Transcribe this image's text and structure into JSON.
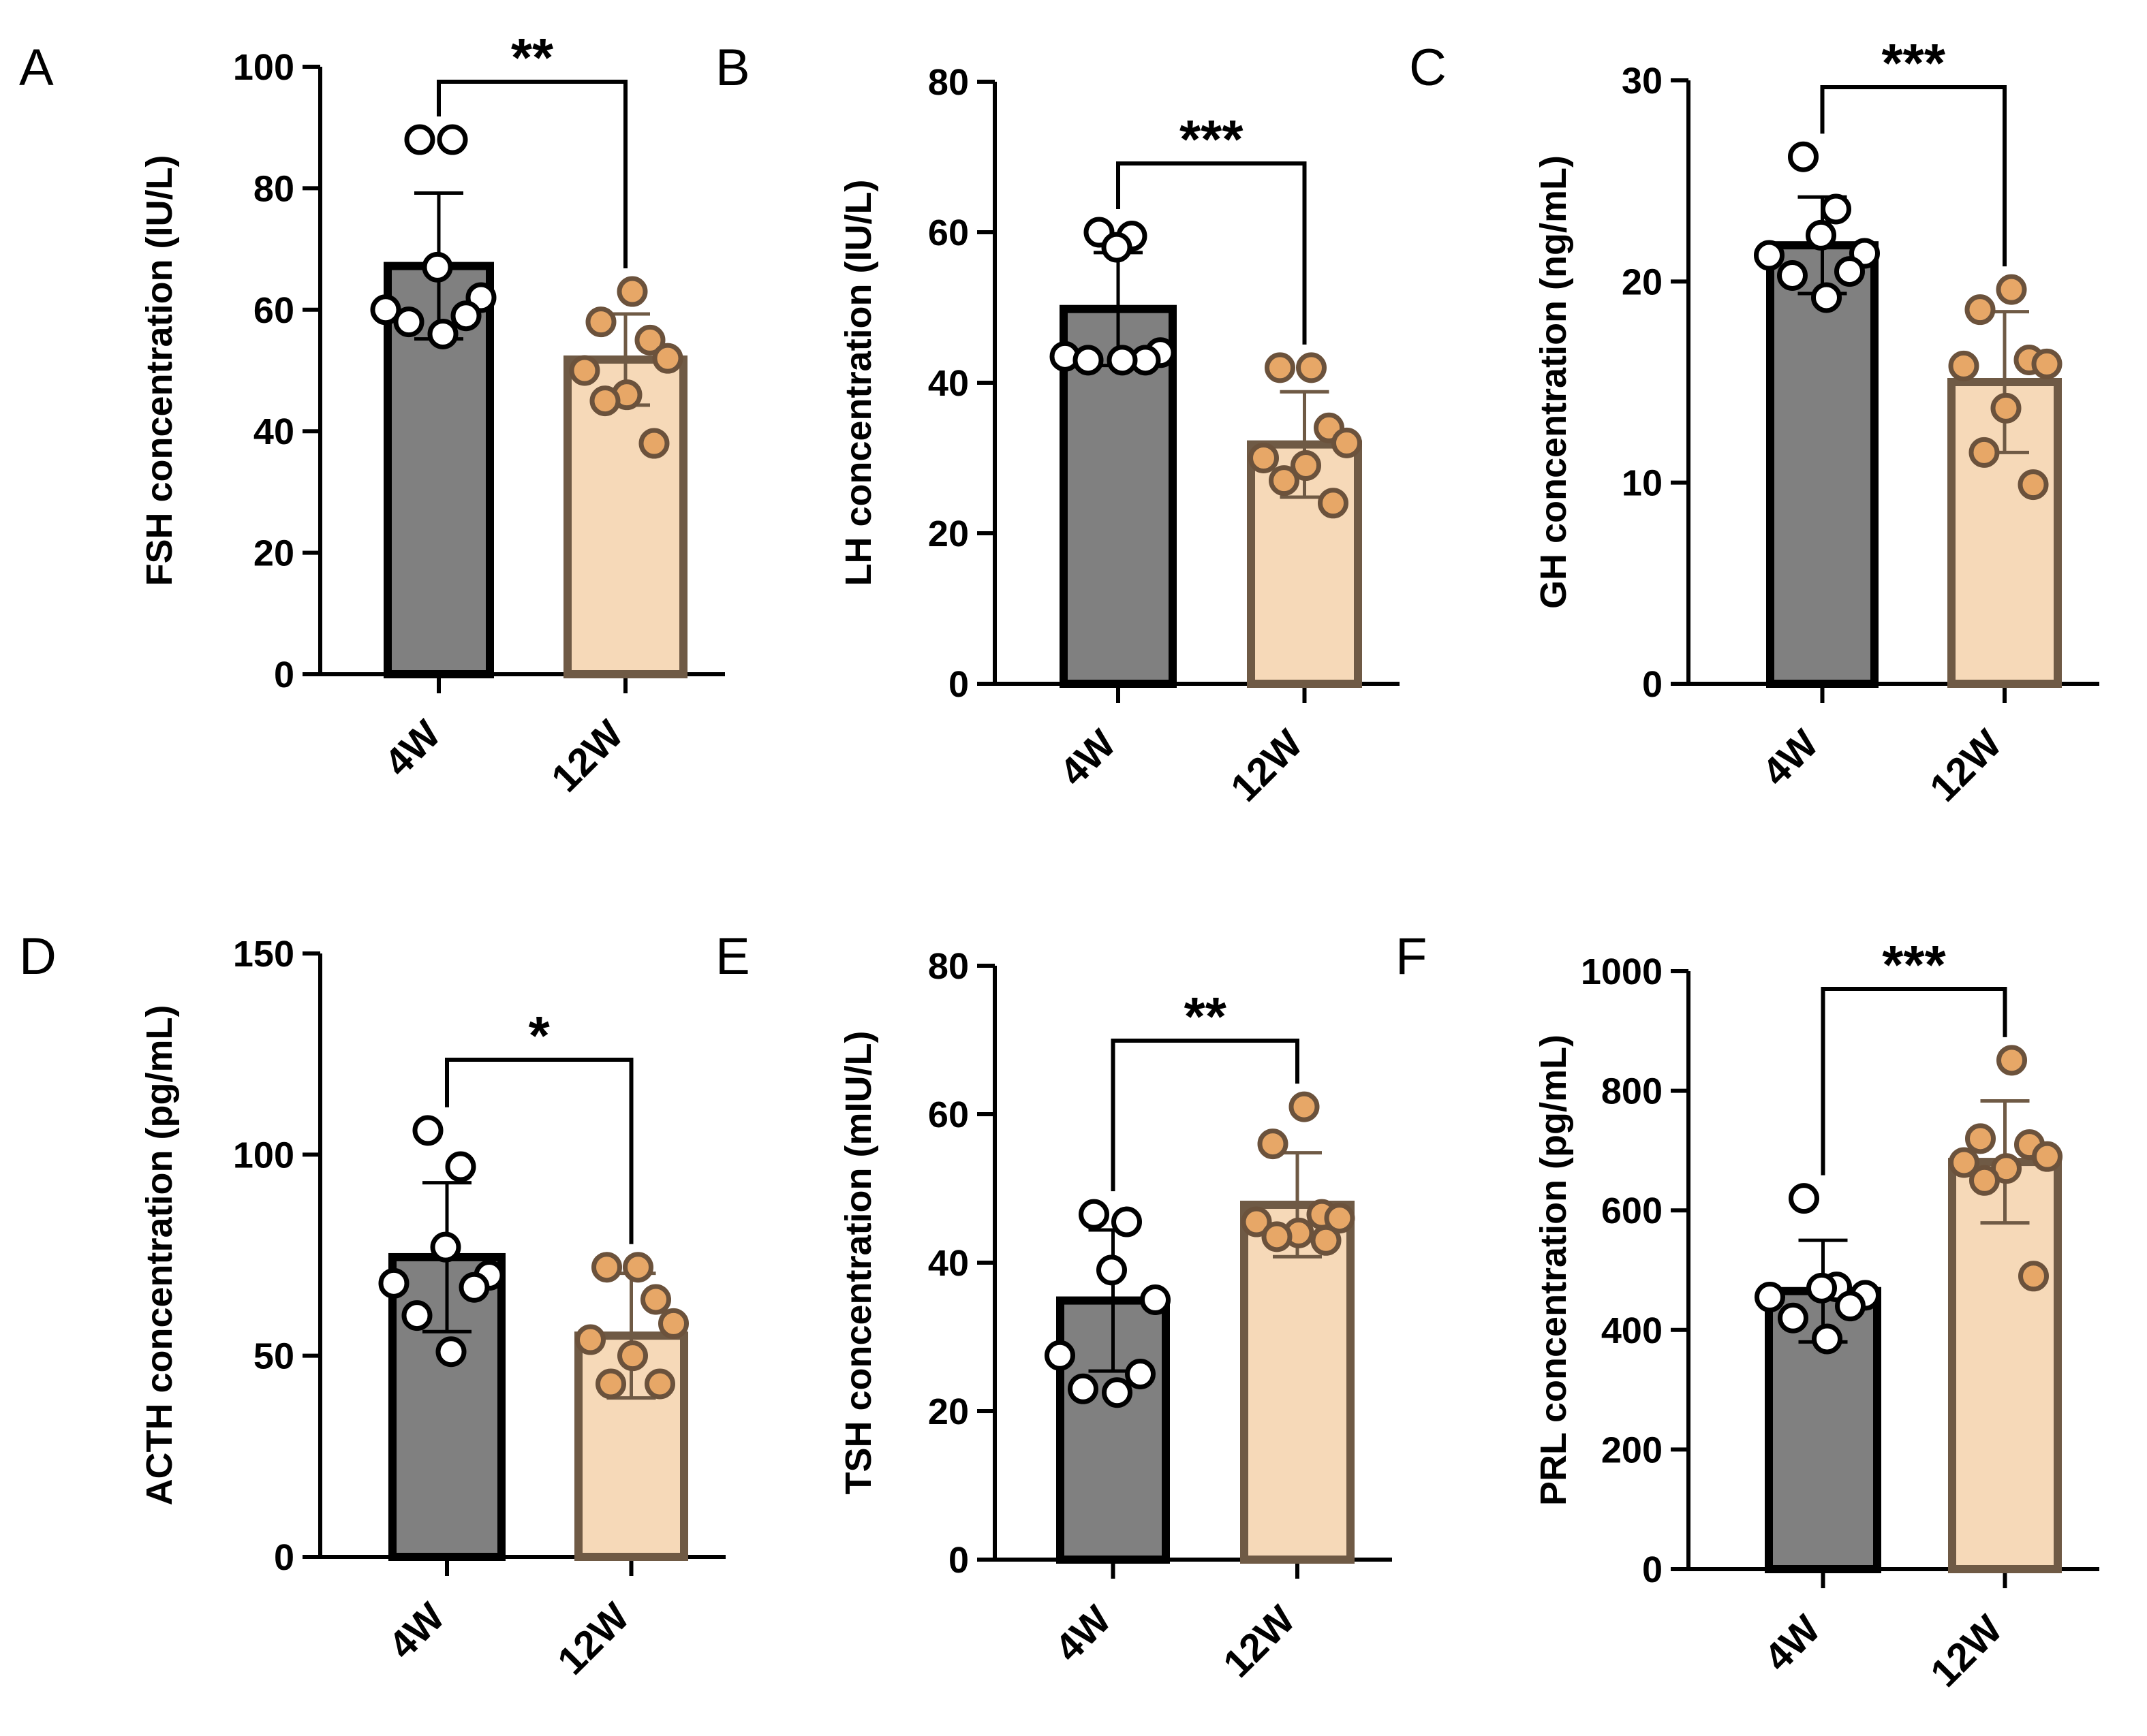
{
  "chart_data": [
    {
      "type": "bar",
      "panel": "A",
      "ylabel": "FSH concentration (IU/L)",
      "ylim": [
        0,
        100
      ],
      "yticks": [
        0,
        20,
        40,
        60,
        80,
        100
      ],
      "categories": [
        "4W",
        "12W"
      ],
      "values": [
        67.2,
        51.8
      ],
      "errors": [
        12.0,
        7.5
      ],
      "points": [
        [
          88,
          88,
          67,
          62,
          60,
          59,
          58,
          56
        ],
        [
          63,
          58,
          55,
          52,
          50,
          46,
          45,
          38
        ]
      ],
      "significance": "**"
    },
    {
      "type": "bar",
      "panel": "B",
      "ylabel": "LH concentration (IU/L)",
      "ylim": [
        0,
        80
      ],
      "yticks": [
        0,
        20,
        40,
        60,
        80
      ],
      "categories": [
        "4W",
        "12W"
      ],
      "values": [
        49.8,
        31.8
      ],
      "errors": [
        7.5,
        7.0
      ],
      "points": [
        [
          60,
          59.5,
          58,
          44,
          43.5,
          43,
          43,
          43
        ],
        [
          42,
          42,
          34,
          32,
          30,
          29,
          27,
          24
        ]
      ],
      "significance": "***"
    },
    {
      "type": "bar",
      "panel": "C",
      "ylabel": "GH concentration (ng/mL)",
      "ylim": [
        0,
        30
      ],
      "yticks": [
        0,
        10,
        20,
        30
      ],
      "categories": [
        "4W",
        "12W"
      ],
      "values": [
        21.8,
        15.0
      ],
      "errors": [
        2.4,
        3.5
      ],
      "points": [
        [
          26.2,
          23.6,
          22.3,
          21.4,
          21.3,
          20.5,
          20.3,
          19.2
        ],
        [
          19.6,
          18.6,
          16.1,
          15.9,
          15.8,
          13.7,
          11.5,
          9.9
        ]
      ],
      "significance": "***"
    },
    {
      "type": "bar",
      "panel": "D",
      "ylabel": "ACTH concentration (pg/mL)",
      "ylim": [
        0,
        150
      ],
      "yticks": [
        0,
        50,
        100,
        150
      ],
      "categories": [
        "4W",
        "12W"
      ],
      "values": [
        74.5,
        55.0
      ],
      "errors": [
        18.5,
        15.5
      ],
      "points": [
        [
          106,
          97,
          77,
          70,
          68,
          67,
          60,
          51
        ],
        [
          72,
          72,
          64,
          58,
          54,
          50,
          43,
          43
        ]
      ],
      "significance": "*"
    },
    {
      "type": "bar",
      "panel": "E",
      "ylabel": "TSH concentration (mIU/L)",
      "ylim": [
        0,
        80
      ],
      "yticks": [
        0,
        20,
        40,
        60,
        80
      ],
      "categories": [
        "4W",
        "12W"
      ],
      "values": [
        34.9,
        47.8
      ],
      "errors": [
        9.5,
        7.0
      ],
      "points": [
        [
          46.5,
          45.5,
          39,
          35,
          27.5,
          25,
          23,
          22.5
        ],
        [
          61,
          56,
          46.5,
          46,
          45.5,
          44,
          43.5,
          43
        ]
      ],
      "significance": "**"
    },
    {
      "type": "bar",
      "panel": "F",
      "ylabel": "PRL concentration (pg/mL)",
      "ylim": [
        0,
        1000
      ],
      "yticks": [
        0,
        200,
        400,
        600,
        800,
        1000
      ],
      "categories": [
        "4W",
        "12W"
      ],
      "values": [
        465,
        681
      ],
      "errors": [
        85,
        102
      ],
      "points": [
        [
          620,
          472,
          470,
          458,
          455,
          440,
          420,
          385
        ],
        [
          851,
          720,
          710,
          690,
          680,
          670,
          650,
          490
        ]
      ],
      "significance": "***"
    }
  ]
}
